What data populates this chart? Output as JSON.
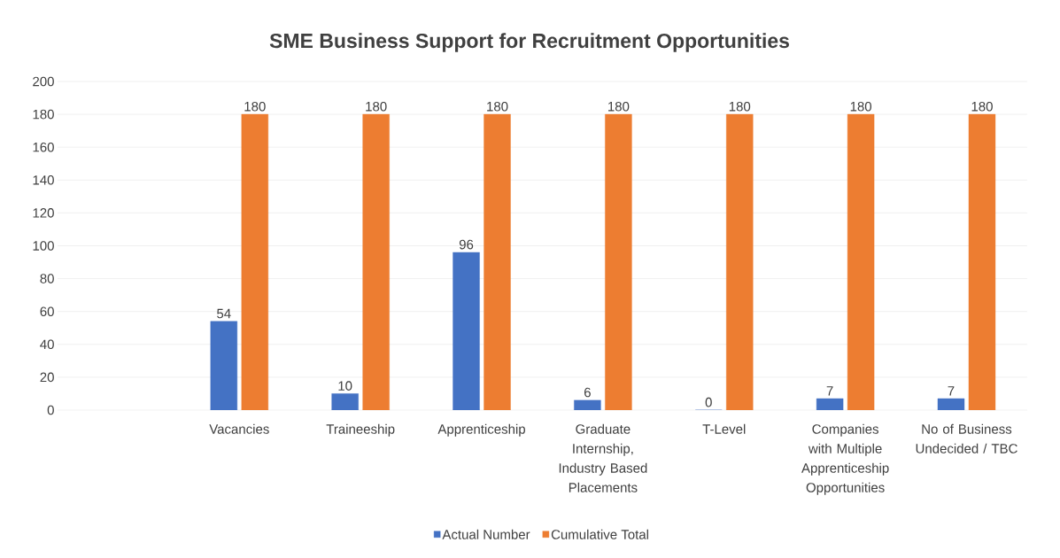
{
  "chart_data": {
    "type": "bar",
    "title": "SME Business Support for Recruitment Opportunities",
    "categories": [
      null,
      "Vacancies",
      "Traineeship",
      "Apprenticeship",
      "Graduate Internship, Industry Based Placements",
      "T-Level",
      "Companies with Multiple Apprenticeship Opportunities",
      "No of Business Undecided / TBC"
    ],
    "series": [
      {
        "name": "Actual Number",
        "color": "#4472c4",
        "values": [
          null,
          54,
          10,
          96,
          6,
          0,
          7,
          7
        ]
      },
      {
        "name": "Cumulative Total",
        "color": "#ed7d31",
        "values": [
          null,
          180,
          180,
          180,
          180,
          180,
          180,
          180
        ]
      }
    ],
    "ylim": [
      0,
      200
    ],
    "yticks": [
      0,
      20,
      40,
      60,
      80,
      100,
      120,
      140,
      160,
      180,
      200
    ],
    "grid": "y",
    "legend": "bottom",
    "data_labels": true
  }
}
